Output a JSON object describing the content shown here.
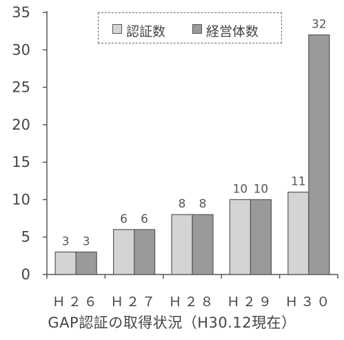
{
  "chart_data": {
    "type": "bar",
    "categories": [
      "H26",
      "H27",
      "H28",
      "H29",
      "H30"
    ],
    "category_labels": [
      "Ｈ２６",
      "Ｈ２７",
      "Ｈ２８",
      "Ｈ２９",
      "Ｈ３０"
    ],
    "series": [
      {
        "name": "認証数",
        "values": [
          3,
          6,
          8,
          10,
          11
        ],
        "color": "#d4d4d4"
      },
      {
        "name": "経営体数",
        "values": [
          3,
          6,
          8,
          10,
          32
        ],
        "color": "#9a9a9a"
      }
    ],
    "ylim": [
      0,
      35
    ],
    "yticks": [
      0,
      5,
      10,
      15,
      20,
      25,
      30,
      35
    ],
    "grid": false,
    "legend_position": "top",
    "data_labels": true,
    "caption": "GAP認証の取得状況（H30.12現在）"
  }
}
